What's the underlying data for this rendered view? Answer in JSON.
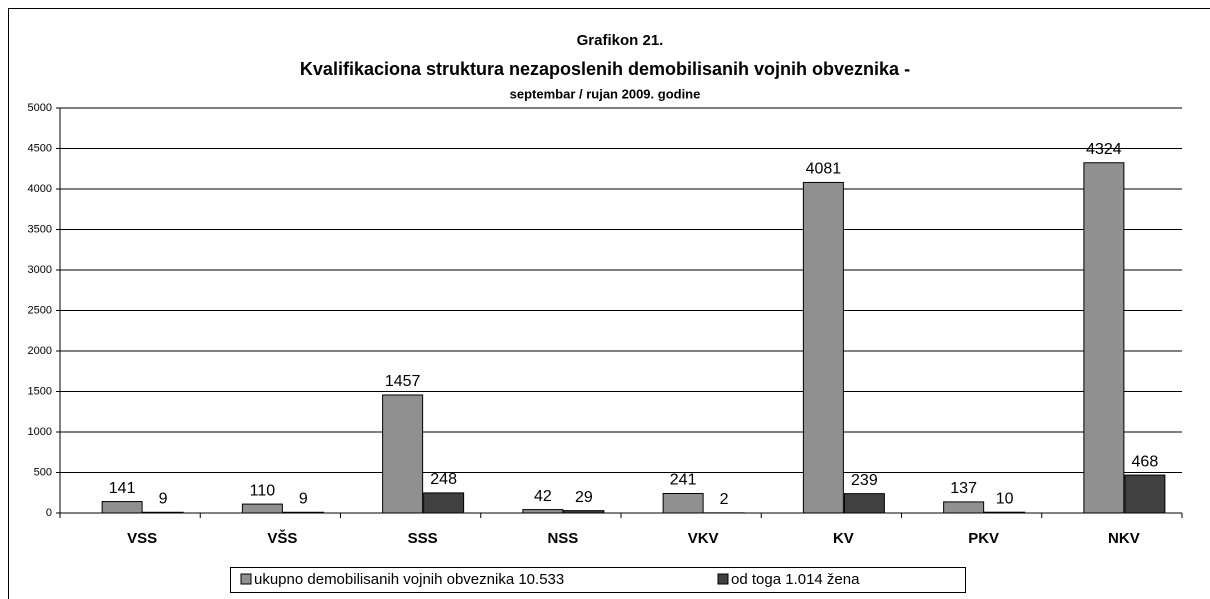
{
  "chart_data": {
    "type": "bar",
    "title": "Grafikon 21.",
    "subtitle": "Kvalifikaciona struktura nezaposlenih demobilisanih vojnih obveznika -",
    "subtitle2": "septembar / rujan 2009. godine",
    "categories": [
      "VSS",
      "VŠS",
      "SSS",
      "NSS",
      "VKV",
      "KV",
      "PKV",
      "NKV"
    ],
    "series": [
      {
        "name": "ukupno demobilisanih vojnih obveznika 10.533",
        "color": "#909090",
        "values": [
          141,
          110,
          1457,
          42,
          241,
          4081,
          137,
          4324
        ]
      },
      {
        "name": "od toga 1.014 žena",
        "color": "#404040",
        "values": [
          9,
          9,
          248,
          29,
          2,
          239,
          10,
          468
        ]
      }
    ],
    "ylim": [
      0,
      5000
    ],
    "yticks": [
      0,
      500,
      1000,
      1500,
      2000,
      2500,
      3000,
      3500,
      4000,
      4500,
      5000
    ],
    "grid": true,
    "legend": "bottom"
  }
}
